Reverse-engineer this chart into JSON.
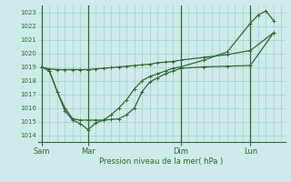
{
  "bg_color": "#ceeaea",
  "grid_color": "#aacccc",
  "line_color": "#2d6a2d",
  "xlabel": "Pression niveau de la mer( hPa )",
  "ylim": [
    1013.5,
    1023.5
  ],
  "yticks": [
    1014,
    1015,
    1016,
    1017,
    1018,
    1019,
    1020,
    1021,
    1022,
    1023
  ],
  "xtick_labels": [
    "Sam",
    "Mar",
    "Dim",
    "Lun"
  ],
  "xtick_positions": [
    0,
    6,
    18,
    27
  ],
  "vline_positions": [
    0,
    6,
    18,
    27
  ],
  "xlim": [
    -0.5,
    31.5
  ],
  "series1_x": [
    0,
    1,
    2,
    3,
    4,
    5,
    6,
    7,
    8,
    9,
    10,
    11,
    12,
    13,
    14,
    15,
    16,
    17,
    18,
    21,
    24,
    27,
    30
  ],
  "series1_y": [
    1019.0,
    1018.85,
    1018.8,
    1018.8,
    1018.8,
    1018.8,
    1018.8,
    1018.85,
    1018.9,
    1018.95,
    1019.0,
    1019.05,
    1019.1,
    1019.15,
    1019.2,
    1019.3,
    1019.35,
    1019.4,
    1019.5,
    1019.7,
    1019.9,
    1020.2,
    1021.5
  ],
  "series2_x": [
    0,
    1,
    2,
    3,
    4,
    5,
    6,
    7,
    8,
    9,
    10,
    11,
    12,
    13,
    14,
    15,
    16,
    17,
    18,
    21,
    24,
    27,
    30
  ],
  "series2_y": [
    1019.0,
    1018.7,
    1017.2,
    1016.0,
    1015.2,
    1015.1,
    1015.1,
    1015.1,
    1015.1,
    1015.15,
    1015.2,
    1015.5,
    1016.0,
    1017.2,
    1017.9,
    1018.2,
    1018.5,
    1018.7,
    1018.9,
    1019.0,
    1019.05,
    1019.1,
    1021.5
  ],
  "series3_x": [
    0,
    1,
    2,
    3,
    4,
    5,
    6,
    7,
    8,
    9,
    10,
    11,
    12,
    13,
    14,
    15,
    16,
    17,
    18,
    21,
    24,
    27,
    28,
    29,
    30
  ],
  "series3_y": [
    1019.0,
    1018.7,
    1017.2,
    1015.8,
    1015.1,
    1014.85,
    1014.4,
    1014.9,
    1015.1,
    1015.5,
    1016.0,
    1016.6,
    1017.4,
    1018.0,
    1018.3,
    1018.5,
    1018.7,
    1018.9,
    1019.0,
    1019.5,
    1020.1,
    1022.2,
    1022.8,
    1023.1,
    1022.4
  ]
}
